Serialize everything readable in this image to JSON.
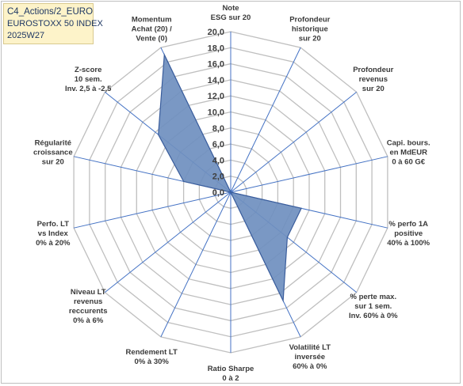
{
  "title": {
    "line1": "C4_Actions/2_EURO",
    "line2": "EUROSTOXX 50 INDEX",
    "line3": "2025W27"
  },
  "colors": {
    "fill": "#6f8fbf",
    "stroke": "#3a5d9c",
    "grid": "#bfbfbf",
    "spoke": "#4472c4",
    "title_bg": "#fdf3c9"
  },
  "chart_data": {
    "type": "radar",
    "rlim": [
      0,
      20
    ],
    "rticks": [
      "0,0",
      "2,0",
      "4,0",
      "6,0",
      "8,0",
      "10,0",
      "12,0",
      "14,0",
      "16,0",
      "18,0",
      "20,0"
    ],
    "grid": true,
    "categories": [
      [
        "Note",
        "ESG sur 20"
      ],
      [
        "Profondeur",
        "historique",
        "sur 20"
      ],
      [
        "Profondeur",
        "revenus",
        "sur 20"
      ],
      [
        "Capi. bours.",
        "en MdEUR",
        "0 à 60 G€"
      ],
      [
        "% perfo 1A",
        "positive",
        "40% à 100%"
      ],
      [
        "% perte max.",
        "sur 1 sem.",
        "Inv. 60% à 0%"
      ],
      [
        "Volatilité LT",
        "inversée",
        "60% à 0%"
      ],
      [
        "Ratio Sharpe",
        "0 à 2"
      ],
      [
        "Rendement LT",
        "0% à 30%"
      ],
      [
        "Niveau LT",
        "revenus",
        "reccurents",
        "0% à 6%"
      ],
      [
        "Perfo. LT",
        "vs Index",
        "0% à 20%"
      ],
      [
        "Régularité",
        "croissance",
        "sur 20"
      ],
      [
        "Z-score",
        "10 sem.",
        "Inv. 2,5 à -2,5"
      ],
      [
        "Momentum",
        "Achat (20) /",
        "Vente (0)"
      ]
    ],
    "series": [
      {
        "values": [
          0.0,
          0.0,
          0.0,
          0.0,
          9.0,
          9.0,
          15.0,
          0.0,
          0.0,
          0.0,
          0.0,
          6.0,
          11.5,
          19.0
        ]
      }
    ]
  }
}
